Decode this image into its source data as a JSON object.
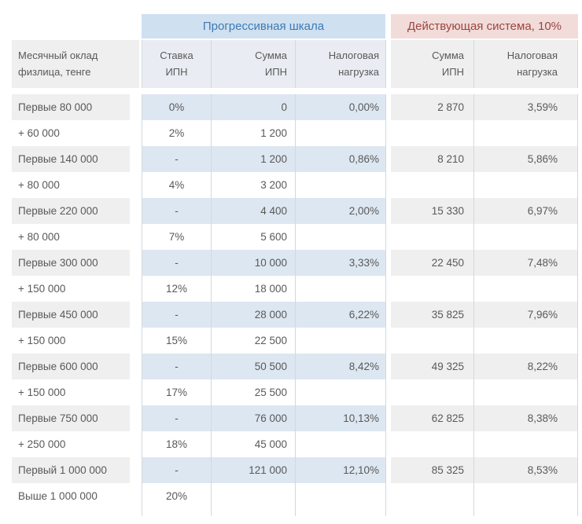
{
  "table": {
    "band": {
      "progressive_label": "Прогрессивная шкала",
      "current_label": "Действующая система, 10%"
    },
    "columns": [
      {
        "id": "salary",
        "label": "Месячный оклад\nфизлица, тенге"
      },
      {
        "id": "rate",
        "label": "Ставка\nИПН"
      },
      {
        "id": "sum",
        "label": "Сумма\nИПН"
      },
      {
        "id": "burden",
        "label": "Налоговая\nнагрузка"
      },
      {
        "id": "cur_sum",
        "label": "Сумма\nИПН"
      },
      {
        "id": "cur_burden",
        "label": "Налоговая\nнагрузка"
      }
    ],
    "rows": [
      {
        "salary": "Первые 80 000",
        "rate": "0%",
        "sum": "0",
        "burden": "0,00%",
        "cur_sum": "2 870",
        "cur_burden": "3,59%",
        "shaded": true
      },
      {
        "salary": "+ 60 000",
        "rate": "2%",
        "sum": "1 200",
        "burden": "",
        "cur_sum": "",
        "cur_burden": "",
        "shaded": false
      },
      {
        "salary": "Первые 140 000",
        "rate": "-",
        "sum": "1 200",
        "burden": "0,86%",
        "cur_sum": "8 210",
        "cur_burden": "5,86%",
        "shaded": true
      },
      {
        "salary": "+ 80 000",
        "rate": "4%",
        "sum": "3 200",
        "burden": "",
        "cur_sum": "",
        "cur_burden": "",
        "shaded": false
      },
      {
        "salary": "Первые 220 000",
        "rate": "-",
        "sum": "4 400",
        "burden": "2,00%",
        "cur_sum": "15 330",
        "cur_burden": "6,97%",
        "shaded": true
      },
      {
        "salary": "+ 80 000",
        "rate": "7%",
        "sum": "5 600",
        "burden": "",
        "cur_sum": "",
        "cur_burden": "",
        "shaded": false
      },
      {
        "salary": "Первые 300 000",
        "rate": "-",
        "sum": "10 000",
        "burden": "3,33%",
        "cur_sum": "22 450",
        "cur_burden": "7,48%",
        "shaded": true
      },
      {
        "salary": "+ 150 000",
        "rate": "12%",
        "sum": "18 000",
        "burden": "",
        "cur_sum": "",
        "cur_burden": "",
        "shaded": false
      },
      {
        "salary": "Первые 450 000",
        "rate": "-",
        "sum": "28 000",
        "burden": "6,22%",
        "cur_sum": "35 825",
        "cur_burden": "7,96%",
        "shaded": true
      },
      {
        "salary": "+ 150 000",
        "rate": "15%",
        "sum": "22 500",
        "burden": "",
        "cur_sum": "",
        "cur_burden": "",
        "shaded": false
      },
      {
        "salary": "Первые 600 000",
        "rate": "-",
        "sum": "50 500",
        "burden": "8,42%",
        "cur_sum": "49 325",
        "cur_burden": "8,22%",
        "shaded": true
      },
      {
        "salary": "+ 150 000",
        "rate": "17%",
        "sum": "25 500",
        "burden": "",
        "cur_sum": "",
        "cur_burden": "",
        "shaded": false
      },
      {
        "salary": "Первые 750 000",
        "rate": "-",
        "sum": "76 000",
        "burden": "10,13%",
        "cur_sum": "62 825",
        "cur_burden": "8,38%",
        "shaded": true
      },
      {
        "salary": "+ 250 000",
        "rate": "18%",
        "sum": "45 000",
        "burden": "",
        "cur_sum": "",
        "cur_burden": "",
        "shaded": false
      },
      {
        "salary": "Первый 1 000 000",
        "rate": "-",
        "sum": "121 000",
        "burden": "12,10%",
        "cur_sum": "85 325",
        "cur_burden": "8,53%",
        "shaded": true
      },
      {
        "salary": "Выше 1 000 000",
        "rate": "20%",
        "sum": "",
        "burden": "",
        "cur_sum": "",
        "cur_burden": "",
        "shaded": false
      }
    ]
  },
  "colors": {
    "progressive_band_bg": "#cfe0f0",
    "progressive_band_text": "#3d7ab5",
    "current_band_bg": "#f2dcda",
    "current_band_text": "#9c4540",
    "shaded_blue_cell": "#dde7f1",
    "shaded_gray_cell": "#efefef",
    "text": "#595959"
  },
  "chart_data": {
    "type": "table",
    "title": "",
    "group_headers": [
      "Прогрессивная шкала",
      "Действующая система, 10%"
    ],
    "columns": [
      "Месячный оклад физлица, тенге",
      "Ставка ИПН",
      "Сумма ИПН",
      "Налоговая нагрузка",
      "Сумма ИПН",
      "Налоговая нагрузка"
    ],
    "rows": [
      [
        "Первые 80 000",
        "0%",
        "0",
        "0,00%",
        "2 870",
        "3,59%"
      ],
      [
        "+ 60 000",
        "2%",
        "1 200",
        "",
        "",
        ""
      ],
      [
        "Первые 140 000",
        "-",
        "1 200",
        "0,86%",
        "8 210",
        "5,86%"
      ],
      [
        "+ 80 000",
        "4%",
        "3 200",
        "",
        "",
        ""
      ],
      [
        "Первые 220 000",
        "-",
        "4 400",
        "2,00%",
        "15 330",
        "6,97%"
      ],
      [
        "+ 80 000",
        "7%",
        "5 600",
        "",
        "",
        ""
      ],
      [
        "Первые 300 000",
        "-",
        "10 000",
        "3,33%",
        "22 450",
        "7,48%"
      ],
      [
        "+ 150 000",
        "12%",
        "18 000",
        "",
        "",
        ""
      ],
      [
        "Первые 450 000",
        "-",
        "28 000",
        "6,22%",
        "35 825",
        "7,96%"
      ],
      [
        "+ 150 000",
        "15%",
        "22 500",
        "",
        "",
        ""
      ],
      [
        "Первые 600 000",
        "-",
        "50 500",
        "8,42%",
        "49 325",
        "8,22%"
      ],
      [
        "+ 150 000",
        "17%",
        "25 500",
        "",
        "",
        ""
      ],
      [
        "Первые 750 000",
        "-",
        "76 000",
        "10,13%",
        "62 825",
        "8,38%"
      ],
      [
        "+ 250 000",
        "18%",
        "45 000",
        "",
        "",
        ""
      ],
      [
        "Первый 1 000 000",
        "-",
        "121 000",
        "12,10%",
        "85 325",
        "8,53%"
      ],
      [
        "Выше 1 000 000",
        "20%",
        "",
        "",
        "",
        ""
      ]
    ]
  }
}
